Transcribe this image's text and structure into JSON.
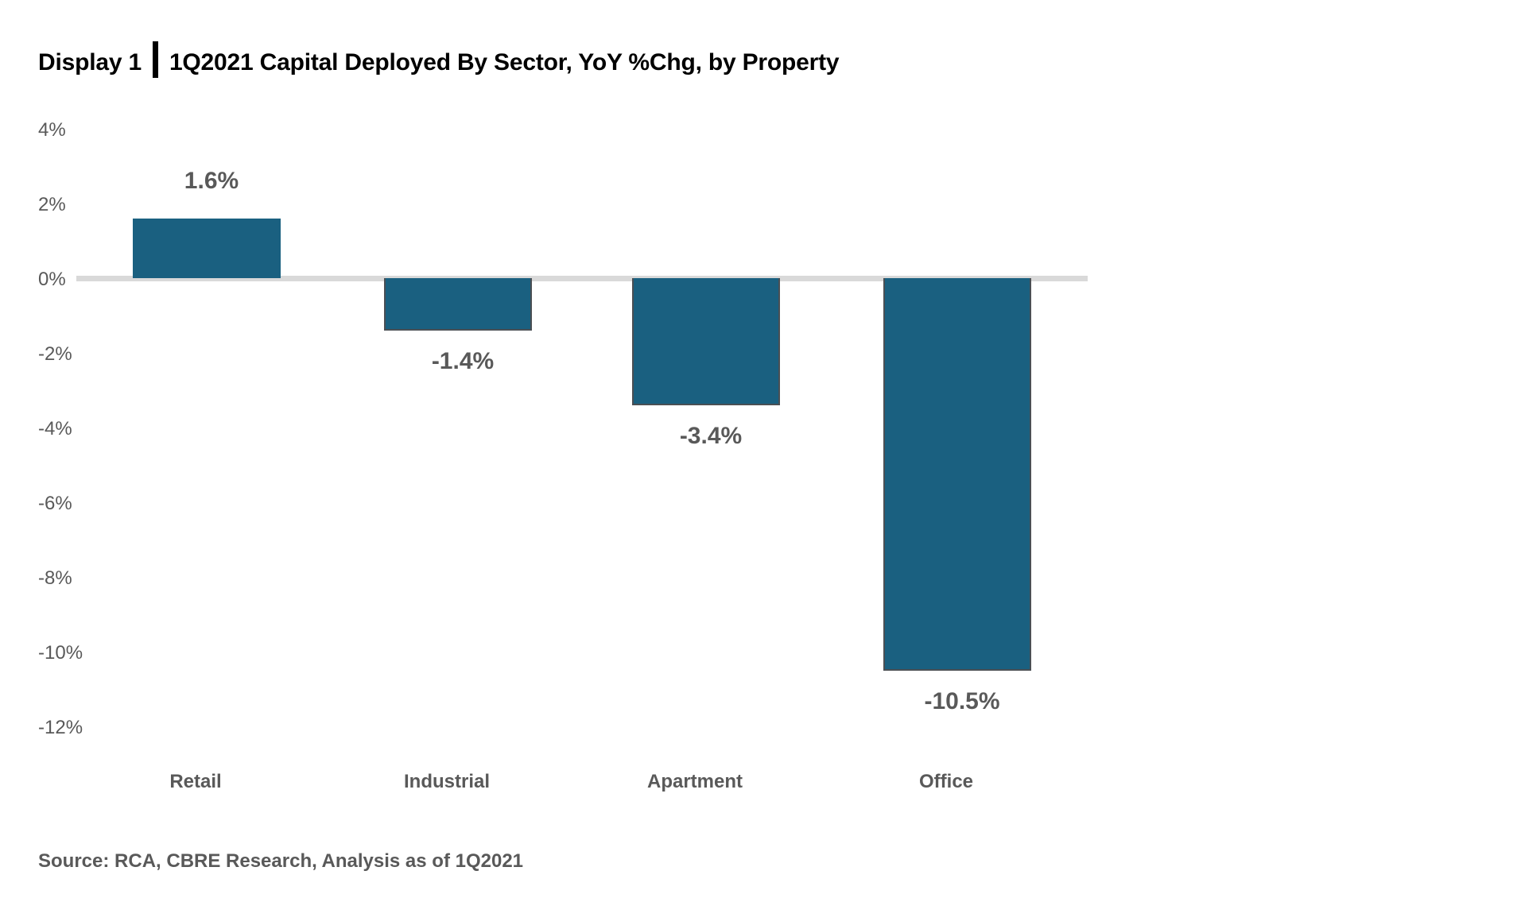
{
  "title": {
    "exhibit": "Display 1",
    "text": "1Q2021 Capital Deployed By Sector, YoY %Chg, by Property"
  },
  "footer": "Source: RCA, CBRE Research, Analysis as of 1Q2021",
  "colors": {
    "bar": "#1a6080",
    "zero_line": "#d9d9d9",
    "text": "#595959",
    "title": "#000000"
  },
  "y_ticks": [
    "4%",
    "2%",
    "0%",
    "-2%",
    "-4%",
    "-6%",
    "-8%",
    "-10%",
    "-12%"
  ],
  "bars": [
    {
      "category": "Retail",
      "value": 1.6,
      "label": "1.6%"
    },
    {
      "category": "Industrial",
      "value": -1.4,
      "label": "-1.4%"
    },
    {
      "category": "Apartment",
      "value": -3.4,
      "label": "-3.4%"
    },
    {
      "category": "Office",
      "value": -10.5,
      "label": "-10.5%"
    }
  ],
  "chart_data": {
    "type": "bar",
    "title": "Display 1 | 1Q2021 Capital Deployed By Sector, YoY %Chg, by Property",
    "categories": [
      "Retail",
      "Industrial",
      "Apartment",
      "Office"
    ],
    "values": [
      1.6,
      -1.4,
      -3.4,
      -10.5
    ],
    "value_labels": [
      "1.6%",
      "-1.4%",
      "-3.4%",
      "-10.5%"
    ],
    "xlabel": "",
    "ylabel": "",
    "ylim": [
      -12,
      4
    ],
    "y_ticks": [
      4,
      2,
      0,
      -2,
      -4,
      -6,
      -8,
      -10,
      -12
    ],
    "y_tick_format": "%",
    "grid": false,
    "zero_line": true,
    "legend": "none",
    "source": "Source: RCA, CBRE Research, Analysis as of 1Q2021"
  }
}
